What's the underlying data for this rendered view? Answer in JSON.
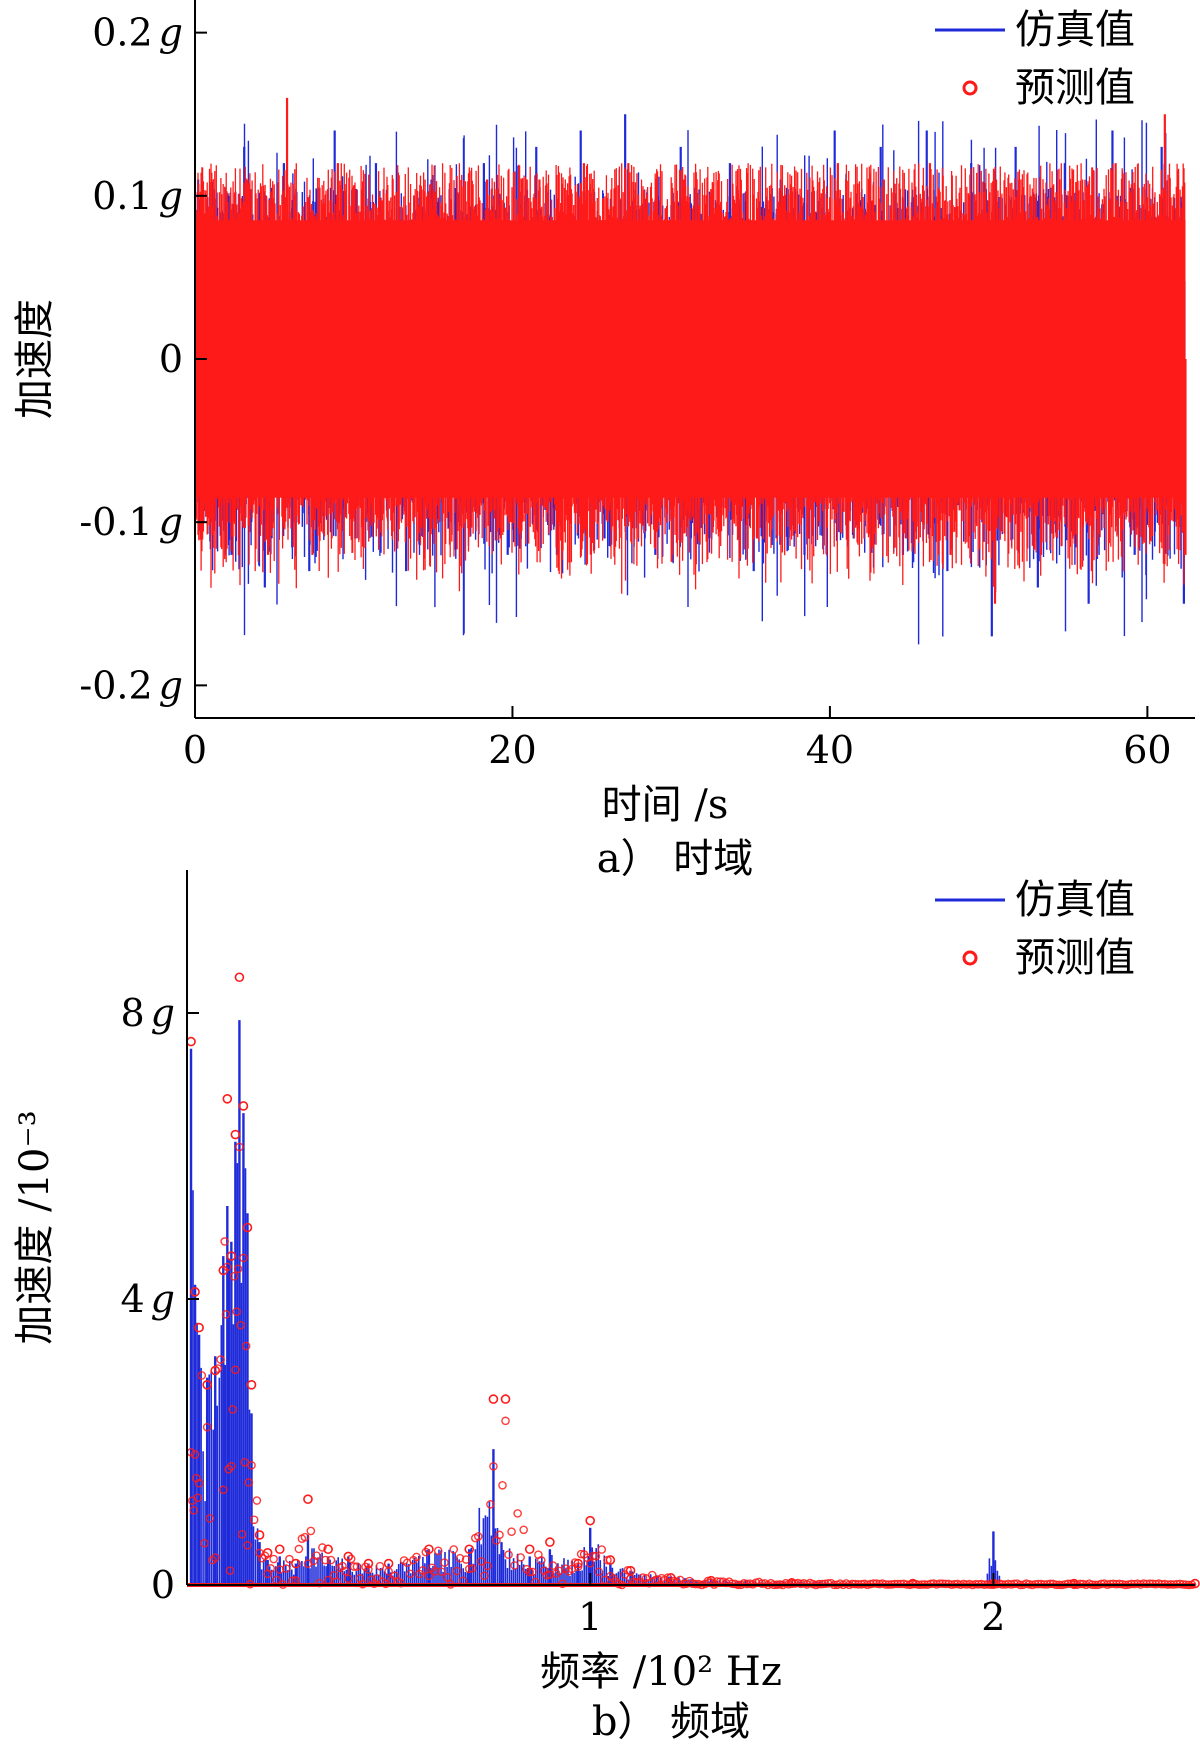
{
  "chart_data": [
    {
      "type": "line",
      "panel_caption": "a） 时域",
      "xlabel": "时间 /s",
      "ylabel": "加速度",
      "xlim": [
        0,
        63
      ],
      "ylim": [
        -0.22,
        0.22
      ],
      "x_ticks": [
        0,
        20,
        40,
        60
      ],
      "y_ticks": [
        {
          "value": 0.2,
          "label": "0.2 g"
        },
        {
          "value": 0.1,
          "label": "0.1 g"
        },
        {
          "value": 0,
          "label": "0"
        },
        {
          "value": -0.1,
          "label": "-0.1 g"
        },
        {
          "value": -0.2,
          "label": "-0.2 g"
        }
      ],
      "legend_position": "top-right",
      "series": [
        {
          "name": "仿真值",
          "marker": "line",
          "color": "#1f2bd9",
          "amplitude_envelope": {
            "max": 0.16,
            "min": -0.17
          },
          "peaks_x": [
            0.2,
            2.3,
            3.1,
            4.4,
            5.6,
            7.2,
            8.8,
            10.1,
            11.4,
            13.3,
            14.9,
            16.6,
            18.2,
            19.7,
            21.5,
            22.8,
            24.3,
            25.8,
            27.1,
            29.0,
            30.6,
            32.4,
            33.7,
            35.2,
            36.9,
            38.4,
            40.3,
            41.5,
            43.2,
            44.6,
            46.1,
            47.4,
            48.9,
            50.2,
            51.7,
            53.1,
            54.8,
            56.3,
            57.8,
            59.2,
            60.9,
            62.3
          ],
          "peaks_y": [
            0.11,
            -0.12,
            0.13,
            -0.14,
            0.12,
            -0.13,
            0.14,
            -0.11,
            0.12,
            -0.13,
            0.11,
            -0.1,
            0.12,
            -0.12,
            0.13,
            -0.12,
            0.14,
            -0.11,
            0.15,
            -0.12,
            0.13,
            -0.11,
            0.12,
            -0.13,
            0.11,
            -0.12,
            0.14,
            -0.11,
            0.13,
            -0.12,
            0.14,
            -0.13,
            0.12,
            -0.17,
            0.13,
            -0.14,
            0.12,
            -0.15,
            0.14,
            -0.12,
            0.13,
            -0.15
          ]
        },
        {
          "name": "预测值",
          "marker": "circle",
          "color": "#ff1a1a",
          "band": [
            -0.085,
            0.085
          ],
          "peaks_x": [
            0.3,
            2.4,
            3.3,
            4.6,
            5.8,
            7.4,
            9.0,
            10.3,
            11.6,
            13.5,
            15.1,
            16.8,
            18.4,
            19.9,
            21.7,
            23.0,
            24.5,
            26.0,
            27.3,
            29.2,
            30.8,
            32.6,
            33.9,
            35.4,
            37.1,
            38.6,
            40.5,
            41.7,
            43.4,
            44.8,
            46.3,
            47.6,
            49.1,
            50.4,
            51.9,
            53.3,
            55.0,
            56.5,
            58.0,
            59.4,
            61.1,
            62.4
          ],
          "peaks_y": [
            0.09,
            -0.1,
            0.11,
            -0.12,
            0.16,
            -0.12,
            0.12,
            -0.09,
            0.1,
            -0.11,
            0.1,
            -0.09,
            0.11,
            -0.1,
            0.11,
            -0.1,
            0.12,
            -0.1,
            0.12,
            -0.1,
            0.11,
            -0.1,
            0.1,
            -0.11,
            0.1,
            -0.11,
            0.12,
            -0.1,
            0.11,
            -0.11,
            0.12,
            -0.12,
            0.1,
            -0.15,
            0.11,
            -0.12,
            0.1,
            -0.13,
            0.12,
            -0.1,
            0.15,
            -0.12
          ]
        }
      ]
    },
    {
      "type": "line",
      "panel_caption": "b） 频域",
      "xlabel": "频率 /10² Hz",
      "ylabel": "加速度 /10⁻³",
      "xlim": [
        0,
        2.5
      ],
      "ylim": [
        0,
        10
      ],
      "x_ticks": [
        {
          "value": 1,
          "label": "1"
        },
        {
          "value": 2,
          "label": "2"
        }
      ],
      "y_ticks": [
        {
          "value": 0,
          "label": "0"
        },
        {
          "value": 4,
          "label": "4 g"
        },
        {
          "value": 8,
          "label": "8 g"
        }
      ],
      "legend_position": "top-right",
      "series": [
        {
          "name": "仿真值",
          "marker": "line",
          "color": "#1f2bd9",
          "x": [
            0.01,
            0.02,
            0.03,
            0.05,
            0.07,
            0.09,
            0.1,
            0.11,
            0.12,
            0.13,
            0.14,
            0.15,
            0.16,
            0.18,
            0.2,
            0.23,
            0.27,
            0.3,
            0.35,
            0.4,
            0.45,
            0.5,
            0.6,
            0.7,
            0.76,
            0.78,
            0.85,
            0.9,
            0.97,
            1.0,
            1.05,
            1.1,
            1.2,
            1.3,
            1.5,
            1.8,
            1.98,
            2.0,
            2.02,
            2.2,
            2.5
          ],
          "y": [
            7.5,
            4.2,
            3.5,
            2.9,
            3.2,
            4.6,
            5.3,
            4.8,
            6.2,
            7.9,
            6.6,
            5.2,
            2.4,
            0.6,
            0.35,
            0.4,
            0.3,
            0.7,
            0.4,
            0.4,
            0.3,
            0.3,
            0.5,
            0.5,
            1.9,
            0.6,
            0.4,
            0.5,
            0.3,
            0.8,
            0.3,
            0.2,
            0.12,
            0.08,
            0.05,
            0.03,
            0.03,
            0.75,
            0.03,
            0.02,
            0.02
          ]
        },
        {
          "name": "预测值",
          "marker": "circle",
          "color": "#ff1a1a",
          "x": [
            0.01,
            0.02,
            0.03,
            0.05,
            0.07,
            0.09,
            0.1,
            0.11,
            0.12,
            0.13,
            0.14,
            0.15,
            0.16,
            0.18,
            0.2,
            0.23,
            0.27,
            0.3,
            0.35,
            0.4,
            0.45,
            0.5,
            0.6,
            0.7,
            0.76,
            0.79,
            0.85,
            0.9,
            0.97,
            1.0,
            1.05,
            1.1,
            1.2,
            1.3,
            1.5,
            1.8,
            2.0,
            2.2,
            2.5
          ],
          "y": [
            7.6,
            4.1,
            3.6,
            2.8,
            3.0,
            4.4,
            6.8,
            4.6,
            6.3,
            8.5,
            6.7,
            5.0,
            2.8,
            0.7,
            0.45,
            0.5,
            0.3,
            1.2,
            0.5,
            0.4,
            0.3,
            0.3,
            0.5,
            0.5,
            2.6,
            2.6,
            0.5,
            0.6,
            0.3,
            0.9,
            0.35,
            0.2,
            0.1,
            0.06,
            0.03,
            0.02,
            0.02,
            0.02,
            0.02
          ]
        }
      ]
    }
  ]
}
